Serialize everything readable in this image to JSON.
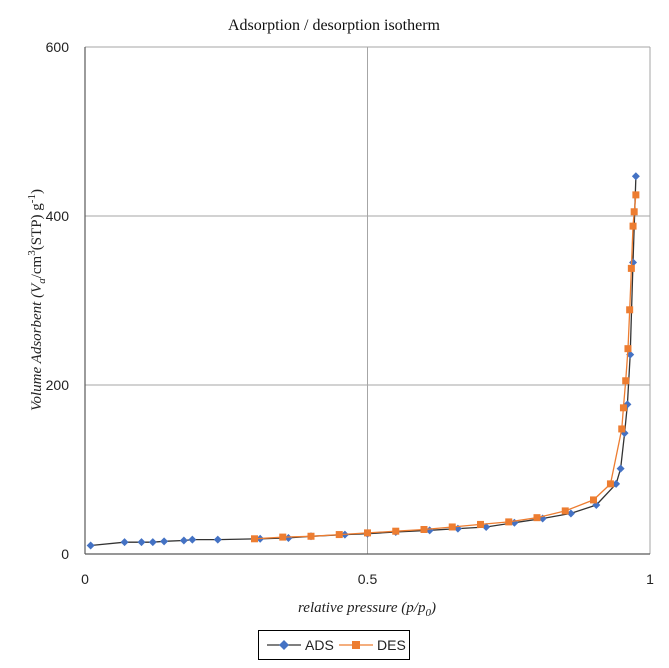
{
  "chart_data": {
    "type": "line",
    "title": "Adsorption / desorption isotherm",
    "xlabel": {
      "main": "relative pressure (p/p",
      "sub": "0",
      "end": ")"
    },
    "ylabel": {
      "a": "Volume Adsorbent (V",
      "sub_a": "a",
      "b": "/cm",
      "sup_b": "3",
      "c": "(STP) g",
      "sup_c": "-1",
      "d": ")"
    },
    "xlim": [
      0,
      1
    ],
    "ylim": [
      0,
      600
    ],
    "xticks": [
      "0",
      "0.5",
      "1"
    ],
    "yticks": [
      "0",
      "200",
      "400",
      "600"
    ],
    "grid": true,
    "legend_position": "bottom",
    "series": [
      {
        "name": "ADS",
        "color": "#4472C4",
        "marker": "diamond",
        "x": [
          0.01,
          0.07,
          0.1,
          0.12,
          0.14,
          0.175,
          0.19,
          0.235,
          0.31,
          0.36,
          0.4,
          0.46,
          0.5,
          0.55,
          0.61,
          0.66,
          0.71,
          0.76,
          0.81,
          0.86,
          0.905,
          0.94,
          0.948,
          0.955,
          0.96,
          0.965,
          0.97,
          0.975
        ],
        "y": [
          10,
          14,
          14,
          14,
          15,
          16,
          17,
          17,
          18,
          19,
          21,
          23,
          24,
          26,
          28,
          30,
          32,
          37,
          42,
          48,
          58,
          83,
          101,
          143,
          177,
          236,
          345,
          447
        ]
      },
      {
        "name": "DES",
        "color": "#ED7D31",
        "marker": "square",
        "x": [
          0.3,
          0.35,
          0.4,
          0.45,
          0.5,
          0.55,
          0.6,
          0.65,
          0.7,
          0.75,
          0.8,
          0.85,
          0.9,
          0.93,
          0.95,
          0.953,
          0.957,
          0.961,
          0.964,
          0.967,
          0.97,
          0.972,
          0.975
        ],
        "y": [
          18,
          20,
          21,
          23,
          25,
          27,
          29,
          32,
          35,
          38,
          43,
          51,
          64,
          83,
          148,
          173,
          205,
          243,
          289,
          338,
          388,
          405,
          425
        ]
      }
    ]
  }
}
